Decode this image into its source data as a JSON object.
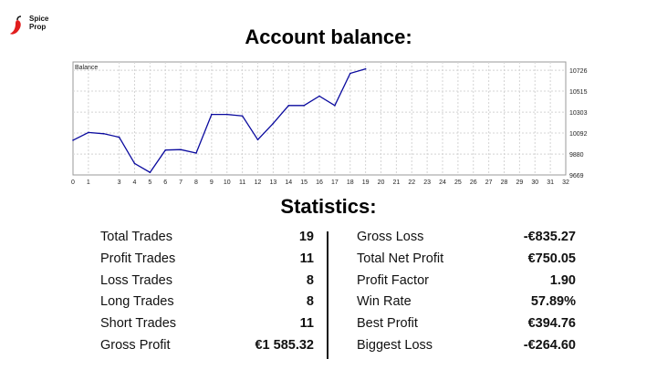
{
  "brand": {
    "line1": "Spice",
    "line2": "Prop"
  },
  "title": "Account balance:",
  "stats_title": "Statistics:",
  "chart_data": {
    "type": "line",
    "panel_label": "Balance",
    "x_ticks": [
      0,
      1,
      3,
      4,
      5,
      6,
      7,
      8,
      9,
      10,
      11,
      12,
      13,
      14,
      15,
      16,
      17,
      18,
      19,
      20,
      21,
      22,
      23,
      24,
      25,
      26,
      27,
      28,
      29,
      30,
      31,
      32
    ],
    "y_ticks": [
      9669,
      9880,
      10092,
      10303,
      10515,
      10726
    ],
    "ylim": [
      9669,
      10810
    ],
    "series": [
      {
        "color": "#0a0a9e",
        "points": [
          [
            0,
            10020
          ],
          [
            1,
            10098
          ],
          [
            2,
            10085
          ],
          [
            3,
            10050
          ],
          [
            4,
            9785
          ],
          [
            5,
            9695
          ],
          [
            6,
            9920
          ],
          [
            7,
            9925
          ],
          [
            8,
            9890
          ],
          [
            9,
            10280
          ],
          [
            10,
            10280
          ],
          [
            11,
            10265
          ],
          [
            12,
            10025
          ],
          [
            13,
            10190
          ],
          [
            14,
            10370
          ],
          [
            15,
            10370
          ],
          [
            16,
            10465
          ],
          [
            17,
            10370
          ],
          [
            18,
            10695
          ],
          [
            19,
            10740
          ]
        ]
      }
    ],
    "grid": true
  },
  "stats": {
    "left": [
      {
        "label": "Total Trades",
        "value": "19"
      },
      {
        "label": "Profit Trades",
        "value": "11"
      },
      {
        "label": "Loss Trades",
        "value": "8"
      },
      {
        "label": "Long Trades",
        "value": "8"
      },
      {
        "label": "Short Trades",
        "value": "11"
      },
      {
        "label": "Gross Profit",
        "value": "€1 585.32"
      }
    ],
    "right": [
      {
        "label": "Gross Loss",
        "value": "-€835.27"
      },
      {
        "label": "Total Net Profit",
        "value": "€750.05"
      },
      {
        "label": "Profit Factor",
        "value": "1.90"
      },
      {
        "label": "Win Rate",
        "value": "57.89%"
      },
      {
        "label": "Best Profit",
        "value": "€394.76"
      },
      {
        "label": "Biggest Loss",
        "value": "-€264.60"
      }
    ]
  }
}
